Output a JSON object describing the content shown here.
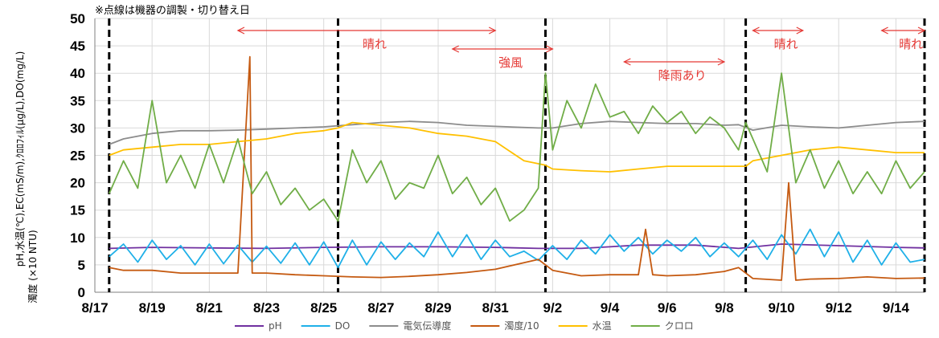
{
  "chart_data": {
    "type": "line",
    "note": "※点線は機器の調製・切り替え日",
    "ylabel_line1": "pH,水温(℃),EC(mS/m),ｸﾛﾛﾌｨﾙ(μg/L),DO(mg/L)",
    "ylabel_line2": "濁度 (×10 NTU)",
    "ylim": [
      0,
      50
    ],
    "yticks": [
      "0",
      "5",
      "10",
      "15",
      "20",
      "25",
      "30",
      "35",
      "40",
      "45",
      "50"
    ],
    "xlim": [
      "2023-08-17",
      "2023-09-15"
    ],
    "xticks": [
      "8/17",
      "8/19",
      "8/21",
      "8/23",
      "8/25",
      "8/27",
      "8/29",
      "8/31",
      "9/2",
      "9/4",
      "9/6",
      "9/8",
      "9/10",
      "9/12",
      "9/14"
    ],
    "xtick_dates": [
      "2023-08-17",
      "2023-08-19",
      "2023-08-21",
      "2023-08-23",
      "2023-08-25",
      "2023-08-27",
      "2023-08-29",
      "2023-08-31",
      "2023-09-02",
      "2023-09-04",
      "2023-09-06",
      "2023-09-08",
      "2023-09-10",
      "2023-09-12",
      "2023-09-14"
    ],
    "dashed_lines": [
      "2023-08-17 12:00",
      "2023-08-25 12:00",
      "2023-09-01 18:00",
      "2023-09-08 18:00",
      "2023-09-15 00:00"
    ],
    "annotations": [
      {
        "text": "晴れ",
        "start": "2023-08-22",
        "end": "2023-08-31"
      },
      {
        "text": "強風",
        "start": "2023-08-29 12:00",
        "end": "2023-09-02"
      },
      {
        "text": "降雨あり",
        "start": "2023-09-04 12:00",
        "end": "2023-09-08"
      },
      {
        "text": "晴れ",
        "start": "2023-09-09",
        "end": "2023-09-10 18:00"
      },
      {
        "text": "晴れ",
        "start": "2023-09-13 12:00",
        "end": "2023-09-15"
      }
    ],
    "legend_position": "bottom",
    "grid": true,
    "series": [
      {
        "name": "pH",
        "color": "#7030a0",
        "x": [
          "2023-08-17 12:00",
          "2023-08-19",
          "2023-08-21",
          "2023-08-23",
          "2023-08-25",
          "2023-08-27",
          "2023-08-29",
          "2023-08-31",
          "2023-09-01 12:00",
          "2023-09-03",
          "2023-09-05",
          "2023-09-07",
          "2023-09-08 12:00",
          "2023-09-10",
          "2023-09-12",
          "2023-09-14",
          "2023-09-15"
        ],
        "y": [
          8.0,
          8.2,
          8.1,
          8.0,
          8.2,
          8.3,
          8.3,
          8.2,
          8.0,
          8.0,
          8.6,
          8.6,
          8.0,
          8.8,
          8.5,
          8.2,
          8.1
        ]
      },
      {
        "name": "DO",
        "color": "#1fb0e8",
        "x": [
          "2023-08-17 12:00",
          "2023-08-18",
          "2023-08-18 12:00",
          "2023-08-19",
          "2023-08-19 12:00",
          "2023-08-20",
          "2023-08-20 12:00",
          "2023-08-21",
          "2023-08-21 12:00",
          "2023-08-22",
          "2023-08-22 12:00",
          "2023-08-23",
          "2023-08-23 12:00",
          "2023-08-24",
          "2023-08-24 12:00",
          "2023-08-25",
          "2023-08-25 12:00",
          "2023-08-26",
          "2023-08-26 12:00",
          "2023-08-27",
          "2023-08-27 12:00",
          "2023-08-28",
          "2023-08-28 12:00",
          "2023-08-29",
          "2023-08-29 12:00",
          "2023-08-30",
          "2023-08-30 12:00",
          "2023-08-31",
          "2023-08-31 12:00",
          "2023-09-01",
          "2023-09-01 12:00",
          "2023-09-02",
          "2023-09-02 12:00",
          "2023-09-03",
          "2023-09-03 12:00",
          "2023-09-04",
          "2023-09-04 12:00",
          "2023-09-05",
          "2023-09-05 12:00",
          "2023-09-06",
          "2023-09-06 12:00",
          "2023-09-07",
          "2023-09-07 12:00",
          "2023-09-08",
          "2023-09-08 12:00",
          "2023-09-09",
          "2023-09-09 12:00",
          "2023-09-10",
          "2023-09-10 12:00",
          "2023-09-11",
          "2023-09-11 12:00",
          "2023-09-12",
          "2023-09-12 12:00",
          "2023-09-13",
          "2023-09-13 12:00",
          "2023-09-14",
          "2023-09-14 12:00",
          "2023-09-15"
        ],
        "y": [
          6.5,
          8.8,
          5.5,
          9.5,
          6.0,
          8.5,
          5.0,
          8.8,
          5.2,
          8.6,
          5.5,
          8.4,
          5.3,
          9.0,
          5.0,
          9.2,
          4.5,
          9.5,
          5.0,
          9.2,
          6.0,
          9.0,
          6.5,
          11.0,
          6.5,
          10.5,
          6.0,
          9.5,
          6.5,
          7.5,
          5.8,
          8.5,
          6.0,
          9.5,
          7.0,
          10.5,
          7.5,
          10.0,
          7.0,
          9.5,
          7.5,
          10.0,
          6.5,
          9.0,
          6.5,
          9.5,
          6.0,
          10.5,
          7.0,
          11.5,
          6.5,
          11.0,
          5.5,
          9.5,
          5.0,
          9.0,
          5.5,
          6.0
        ]
      },
      {
        "name": "電気伝導度",
        "color": "#8c8c8c",
        "x": [
          "2023-08-17 12:00",
          "2023-08-18",
          "2023-08-19",
          "2023-08-20",
          "2023-08-21",
          "2023-08-22",
          "2023-08-23",
          "2023-08-24",
          "2023-08-25",
          "2023-08-26",
          "2023-08-27",
          "2023-08-28",
          "2023-08-29",
          "2023-08-30",
          "2023-08-31",
          "2023-09-01 12:00",
          "2023-09-02",
          "2023-09-03",
          "2023-09-04",
          "2023-09-05",
          "2023-09-06",
          "2023-09-07",
          "2023-09-08",
          "2023-09-08 12:00",
          "2023-09-09",
          "2023-09-10",
          "2023-09-11",
          "2023-09-12",
          "2023-09-13",
          "2023-09-14",
          "2023-09-15"
        ],
        "y": [
          27.0,
          28.0,
          29.0,
          29.5,
          29.5,
          29.6,
          29.8,
          30.0,
          30.2,
          30.6,
          31.0,
          31.2,
          31.0,
          30.5,
          30.3,
          30.0,
          30.0,
          30.8,
          31.2,
          31.0,
          30.8,
          30.8,
          30.5,
          30.6,
          29.6,
          30.5,
          30.2,
          30.0,
          30.5,
          31.0,
          31.2
        ]
      },
      {
        "name": "濁度/10",
        "color": "#c55a11",
        "x": [
          "2023-08-17 12:00",
          "2023-08-18",
          "2023-08-19",
          "2023-08-20",
          "2023-08-21",
          "2023-08-22",
          "2023-08-22 10:00",
          "2023-08-22 12:00",
          "2023-08-22 14:00",
          "2023-08-23",
          "2023-08-24",
          "2023-08-25",
          "2023-08-26",
          "2023-08-27",
          "2023-08-28",
          "2023-08-29",
          "2023-08-30",
          "2023-08-31",
          "2023-09-01 12:00",
          "2023-09-02",
          "2023-09-03",
          "2023-09-04",
          "2023-09-05",
          "2023-09-05 06:00",
          "2023-09-05 12:00",
          "2023-09-06",
          "2023-09-07",
          "2023-09-08",
          "2023-09-08 12:00",
          "2023-09-09",
          "2023-09-10",
          "2023-09-10 06:00",
          "2023-09-10 12:00",
          "2023-09-11",
          "2023-09-12",
          "2023-09-13",
          "2023-09-14",
          "2023-09-15"
        ],
        "y": [
          4.5,
          4.0,
          4.0,
          3.5,
          3.5,
          3.5,
          43.0,
          3.5,
          3.5,
          3.5,
          3.2,
          3.0,
          2.8,
          2.7,
          2.9,
          3.2,
          3.6,
          4.2,
          6.0,
          4.0,
          3.0,
          3.2,
          3.2,
          11.5,
          3.2,
          3.0,
          3.2,
          3.8,
          4.5,
          2.5,
          2.2,
          20.0,
          2.2,
          2.4,
          2.5,
          2.8,
          2.5,
          2.6
        ]
      },
      {
        "name": "水温",
        "color": "#ffc000",
        "x": [
          "2023-08-17 12:00",
          "2023-08-18",
          "2023-08-19",
          "2023-08-20",
          "2023-08-21",
          "2023-08-22",
          "2023-08-23",
          "2023-08-24",
          "2023-08-25",
          "2023-08-25 12:00",
          "2023-08-26",
          "2023-08-27",
          "2023-08-28",
          "2023-08-29",
          "2023-08-30",
          "2023-08-31",
          "2023-09-01",
          "2023-09-01 18:00",
          "2023-09-02",
          "2023-09-03",
          "2023-09-04",
          "2023-09-05",
          "2023-09-06",
          "2023-09-07",
          "2023-09-08",
          "2023-09-08 18:00",
          "2023-09-09",
          "2023-09-10",
          "2023-09-11",
          "2023-09-12",
          "2023-09-13",
          "2023-09-14",
          "2023-09-15"
        ],
        "y": [
          25.0,
          26.0,
          26.5,
          27.0,
          27.0,
          27.5,
          28.0,
          29.0,
          29.5,
          30.0,
          31.0,
          30.5,
          30.0,
          29.0,
          28.5,
          27.5,
          24.0,
          23.2,
          22.5,
          22.2,
          22.0,
          22.5,
          23.0,
          23.0,
          23.0,
          23.0,
          24.0,
          25.0,
          26.0,
          26.5,
          26.0,
          25.5,
          25.5
        ]
      },
      {
        "name": "クロロ",
        "color": "#70ad47",
        "x": [
          "2023-08-17 12:00",
          "2023-08-18",
          "2023-08-18 12:00",
          "2023-08-19",
          "2023-08-19 12:00",
          "2023-08-20",
          "2023-08-20 12:00",
          "2023-08-21",
          "2023-08-21 12:00",
          "2023-08-22",
          "2023-08-22 12:00",
          "2023-08-23",
          "2023-08-23 12:00",
          "2023-08-24",
          "2023-08-24 12:00",
          "2023-08-25",
          "2023-08-25 12:00",
          "2023-08-26",
          "2023-08-26 12:00",
          "2023-08-27",
          "2023-08-27 12:00",
          "2023-08-28",
          "2023-08-28 12:00",
          "2023-08-29",
          "2023-08-29 12:00",
          "2023-08-30",
          "2023-08-30 12:00",
          "2023-08-31",
          "2023-08-31 12:00",
          "2023-09-01",
          "2023-09-01 12:00",
          "2023-09-01 18:00",
          "2023-09-02",
          "2023-09-02 12:00",
          "2023-09-03",
          "2023-09-03 12:00",
          "2023-09-04",
          "2023-09-04 12:00",
          "2023-09-05",
          "2023-09-05 12:00",
          "2023-09-06",
          "2023-09-06 12:00",
          "2023-09-07",
          "2023-09-07 12:00",
          "2023-09-08",
          "2023-09-08 12:00",
          "2023-09-08 18:00",
          "2023-09-09",
          "2023-09-09 12:00",
          "2023-09-10",
          "2023-09-10 12:00",
          "2023-09-11",
          "2023-09-11 12:00",
          "2023-09-12",
          "2023-09-12 12:00",
          "2023-09-13",
          "2023-09-13 12:00",
          "2023-09-14",
          "2023-09-14 12:00",
          "2023-09-15"
        ],
        "y": [
          18,
          24,
          19,
          35,
          20,
          25,
          19,
          27,
          20,
          28,
          18,
          22,
          16,
          19,
          15,
          17,
          13,
          26,
          20,
          24,
          17,
          20,
          19,
          25,
          18,
          21,
          16,
          19,
          13,
          15,
          19,
          40,
          26,
          35,
          30,
          38,
          32,
          33,
          29,
          34,
          31,
          33,
          29,
          32,
          30,
          26,
          31,
          28,
          22,
          40,
          20,
          26,
          19,
          24,
          18,
          22,
          18,
          24,
          19,
          22
        ]
      }
    ]
  }
}
